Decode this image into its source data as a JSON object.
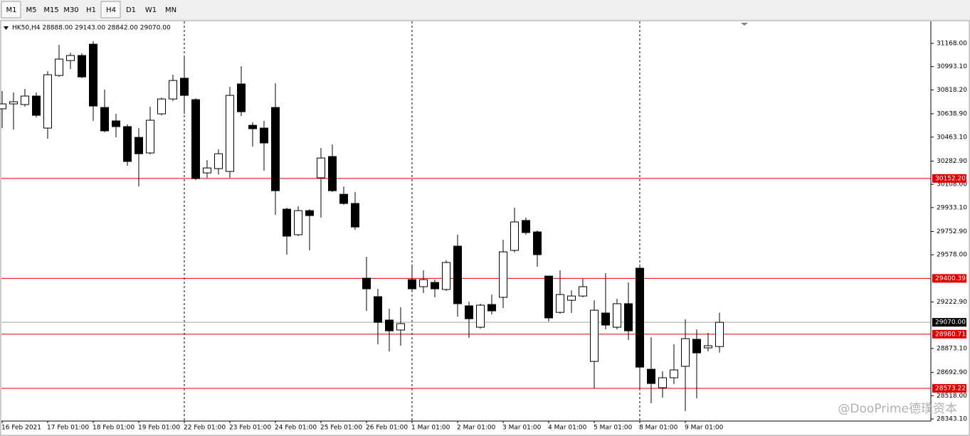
{
  "chart_data": {
    "type": "candlestick",
    "timeframes": [
      "M1",
      "M5",
      "M15",
      "M30",
      "H1",
      "H4",
      "D1",
      "W1",
      "MN"
    ],
    "info": "HK50,H4  28888.00 29143.00 28842.00 29070.00",
    "watermark": "@DooPrime德璞资本",
    "categories": [
      "16 Feb 2021",
      null,
      null,
      null,
      "17 Feb 01:00",
      null,
      null,
      null,
      "18 Feb 01:00",
      null,
      null,
      null,
      "19 Feb 01:00",
      null,
      null,
      null,
      "22 Feb 01:00",
      null,
      null,
      null,
      "23 Feb 01:00",
      null,
      null,
      null,
      "24 Feb 01:00",
      null,
      null,
      null,
      "25 Feb 01:00",
      null,
      null,
      null,
      "26 Feb 01:00",
      null,
      null,
      null,
      "1 Mar 01:00",
      null,
      null,
      null,
      "2 Mar 01:00",
      null,
      null,
      null,
      "3 Mar 01:00",
      null,
      null,
      null,
      "4 Mar 01:00",
      null,
      null,
      null,
      "5 Mar 01:00",
      null,
      null,
      null,
      "8 Mar 01:00",
      null,
      null,
      null,
      "9 Mar 01:00",
      null,
      null,
      null
    ],
    "open": [
      30676,
      30713,
      30708,
      30772,
      30531,
      30927,
      31039,
      31077,
      31162,
      30686,
      30585,
      30542,
      30461,
      30344,
      30638,
      30750,
      30906,
      30745,
      30194,
      30226,
      30205,
      30863,
      30552,
      30531,
      30686,
      29921,
      29729,
      29910,
      30157,
      30317,
      30033,
      29964,
      29402,
      29263,
      29087,
      29012,
      29391,
      29338,
      29370,
      29317,
      29643,
      29194,
      29033,
      29204,
      29258,
      29611,
      29836,
      29750,
      29418,
      29145,
      29236,
      29268,
      28776,
      29140,
      29033,
      29210,
      29477,
      28717,
      28578,
      28653,
      28739,
      28942,
      28878,
      28888
    ],
    "high": [
      30810,
      30799,
      30825,
      30799,
      30959,
      31157,
      31098,
      31093,
      31184,
      30820,
      30638,
      30558,
      30531,
      30692,
      30761,
      30932,
      31077,
      30756,
      30290,
      30371,
      30841,
      30996,
      30574,
      30585,
      30868,
      29932,
      29943,
      29921,
      30381,
      30408,
      30092,
      30050,
      29563,
      29322,
      29172,
      29183,
      29488,
      29461,
      29391,
      29536,
      29729,
      29226,
      29210,
      29279,
      29691,
      29932,
      29857,
      29761,
      29418,
      29461,
      29311,
      29397,
      29236,
      29440,
      29247,
      29370,
      29488,
      28958,
      28701,
      28905,
      29092,
      29017,
      28990,
      29143
    ],
    "low": [
      30531,
      30520,
      30692,
      30611,
      30451,
      30916,
      30975,
      30906,
      30585,
      30499,
      30461,
      30247,
      30092,
      30333,
      30627,
      30734,
      30638,
      30140,
      30157,
      30183,
      30157,
      30622,
      30392,
      30210,
      29878,
      29579,
      29718,
      29611,
      29857,
      30050,
      29953,
      29766,
      29156,
      28905,
      28851,
      28894,
      29301,
      29290,
      29258,
      29306,
      29113,
      28953,
      29022,
      29129,
      29177,
      29595,
      29729,
      29488,
      29076,
      29135,
      29140,
      29258,
      28573,
      29017,
      29017,
      28937,
      28573,
      28461,
      28503,
      28605,
      28402,
      28498,
      28851,
      28842
    ],
    "close": [
      30713,
      30729,
      30772,
      30627,
      30932,
      31050,
      31077,
      30916,
      30697,
      30510,
      30542,
      30280,
      30338,
      30590,
      30750,
      30889,
      30777,
      30151,
      30231,
      30338,
      30777,
      30654,
      30526,
      30419,
      30060,
      29718,
      29910,
      29873,
      30306,
      30060,
      29964,
      29787,
      29322,
      29070,
      29006,
      29060,
      29322,
      29391,
      29322,
      29520,
      29210,
      29097,
      29199,
      29156,
      29600,
      29825,
      29745,
      29579,
      29103,
      29279,
      29268,
      29338,
      29161,
      29049,
      29210,
      29006,
      28733,
      28610,
      28653,
      28712,
      28947,
      28840,
      28894,
      29070
    ],
    "up_color": "#ffffff",
    "down_color": "#000000",
    "ylim": [
      28327.2,
      31333.9
    ],
    "yticks": [
      {
        "value": 31168,
        "label": "31168.00"
      },
      {
        "value": 30993.1,
        "label": "30993.10"
      },
      {
        "value": 30818.2,
        "label": "30818.20"
      },
      {
        "value": 30638.9,
        "label": "30638.90"
      },
      {
        "value": 30463.1,
        "label": "30463.10"
      },
      {
        "value": 30282.9,
        "label": "30282.90"
      },
      {
        "value": 30108,
        "label": "30108.00"
      },
      {
        "value": 29933.1,
        "label": "29933.10"
      },
      {
        "value": 29752.9,
        "label": "29752.90"
      },
      {
        "value": 29578,
        "label": "29578.00"
      },
      {
        "value": 29222.9,
        "label": "29222.90"
      },
      {
        "value": 28873.1,
        "label": "28873.10"
      },
      {
        "value": 28692.9,
        "label": "28692.90"
      },
      {
        "value": 28518,
        "label": "28518.00"
      },
      {
        "value": 28343.1,
        "label": "28343.10"
      }
    ],
    "hlines": [
      {
        "value": 30152.2,
        "label": "30152.20",
        "color": "#e00000"
      },
      {
        "value": 29400.39,
        "label": "29400.39",
        "color": "#e00000"
      },
      {
        "value": 28980.71,
        "label": "28980.71",
        "color": "#e00000"
      },
      {
        "value": 28573.22,
        "label": "28573.22",
        "color": "#e00000"
      },
      {
        "value": 29070,
        "label": "29070.00",
        "color": "#a0a0a0"
      }
    ]
  }
}
